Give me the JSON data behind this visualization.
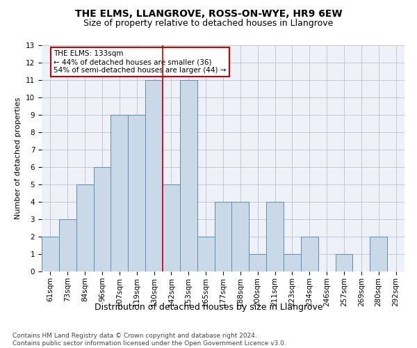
{
  "title": "THE ELMS, LLANGROVE, ROSS-ON-WYE, HR9 6EW",
  "subtitle": "Size of property relative to detached houses in Llangrove",
  "xlabel_bottom": "Distribution of detached houses by size in Llangrove",
  "ylabel": "Number of detached properties",
  "categories": [
    "61sqm",
    "73sqm",
    "84sqm",
    "96sqm",
    "107sqm",
    "119sqm",
    "130sqm",
    "142sqm",
    "153sqm",
    "165sqm",
    "177sqm",
    "188sqm",
    "200sqm",
    "211sqm",
    "223sqm",
    "234sqm",
    "246sqm",
    "257sqm",
    "269sqm",
    "280sqm",
    "292sqm"
  ],
  "values": [
    2,
    3,
    5,
    6,
    9,
    9,
    11,
    5,
    11,
    2,
    4,
    4,
    1,
    4,
    1,
    2,
    0,
    1,
    0,
    2,
    0
  ],
  "bar_color": "#c9d9e8",
  "bar_edge_color": "#5b8db8",
  "bar_width": 1.0,
  "vline_x": 6.5,
  "vline_color": "#cc0000",
  "annotation_text": "THE ELMS: 133sqm\n← 44% of detached houses are smaller (36)\n54% of semi-detached houses are larger (44) →",
  "annotation_box_color": "#ffffff",
  "annotation_box_edge": "#cc0000",
  "ylim": [
    0,
    13
  ],
  "yticks": [
    0,
    1,
    2,
    3,
    4,
    5,
    6,
    7,
    8,
    9,
    10,
    11,
    12,
    13
  ],
  "grid_color": "#c0c8d8",
  "bg_color": "#eef2f8",
  "footer": "Contains HM Land Registry data © Crown copyright and database right 2024.\nContains public sector information licensed under the Open Government Licence v3.0.",
  "title_fontsize": 10,
  "subtitle_fontsize": 9,
  "ylabel_fontsize": 8,
  "tick_fontsize": 7.5,
  "annot_fontsize": 7.5,
  "footer_fontsize": 6.5
}
